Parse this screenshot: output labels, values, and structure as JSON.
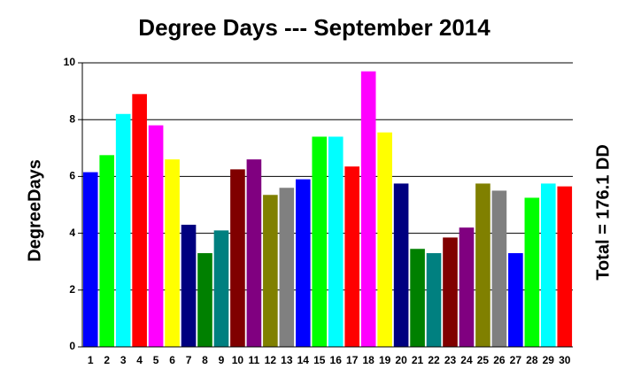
{
  "chart_data": {
    "type": "bar",
    "title": "Degree Days --- September 2014",
    "y_label": "DegreeDays",
    "annotation": "Total = 176.1 DD",
    "categories": [
      "1",
      "2",
      "3",
      "4",
      "5",
      "6",
      "7",
      "8",
      "9",
      "10",
      "11",
      "12",
      "13",
      "14",
      "15",
      "16",
      "17",
      "18",
      "19",
      "20",
      "21",
      "22",
      "23",
      "24",
      "25",
      "26",
      "27",
      "28",
      "29",
      "30"
    ],
    "values": [
      6.15,
      6.75,
      8.2,
      8.9,
      7.8,
      6.6,
      4.3,
      3.3,
      4.1,
      6.25,
      6.6,
      5.35,
      5.6,
      5.9,
      7.4,
      7.4,
      6.35,
      9.7,
      7.55,
      5.75,
      3.45,
      3.3,
      3.85,
      4.2,
      5.75,
      5.5,
      3.3,
      5.25,
      5.75,
      5.65
    ],
    "colors": [
      "#0000ff",
      "#00ff00",
      "#00ffff",
      "#ff0000",
      "#ff00ff",
      "#ffff00",
      "#000080",
      "#008000",
      "#008080",
      "#800000",
      "#800080",
      "#808000",
      "#808080",
      "#0000ff",
      "#00ff00",
      "#00ffff",
      "#ff0000",
      "#ff00ff",
      "#ffff00",
      "#000080",
      "#008000",
      "#008080",
      "#800000",
      "#800080",
      "#808000",
      "#808080",
      "#0000ff",
      "#00ff00",
      "#00ffff",
      "#ff0000"
    ],
    "ylim": [
      0,
      10
    ],
    "yticks": [
      0,
      2,
      4,
      6,
      8,
      10
    ],
    "grid": true
  }
}
